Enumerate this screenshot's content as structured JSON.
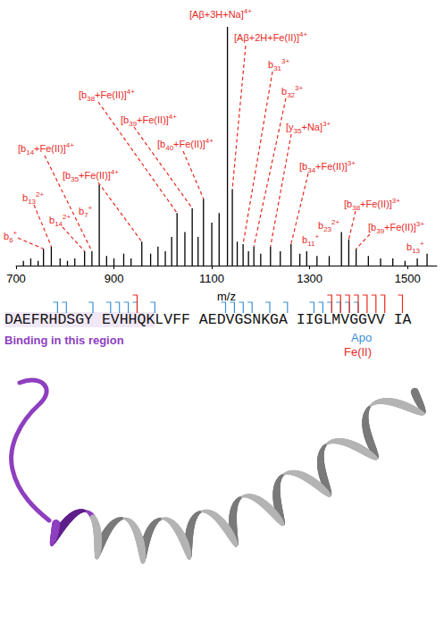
{
  "chart_data": {
    "type": "bar",
    "x_label": "m/z",
    "x": [
      715,
      730,
      745,
      756,
      772,
      790,
      805,
      820,
      840,
      855,
      870,
      885,
      900,
      920,
      935,
      957,
      975,
      990,
      1005,
      1018,
      1029,
      1045,
      1060,
      1072,
      1083,
      1100,
      1115,
      1132,
      1142,
      1152,
      1164,
      1175,
      1186,
      1200,
      1220,
      1240,
      1262,
      1280,
      1294,
      1315,
      1340,
      1365,
      1380,
      1395,
      1420,
      1445,
      1470,
      1495,
      1520,
      1540
    ],
    "values": [
      2,
      3,
      2,
      7,
      8,
      3,
      2,
      3,
      6,
      6,
      34,
      4,
      3,
      5,
      3,
      10,
      5,
      8,
      6,
      12,
      22,
      14,
      24,
      12,
      28,
      18,
      22,
      100,
      32,
      10,
      9,
      6,
      8,
      5,
      8,
      6,
      9,
      5,
      6,
      4,
      4,
      14,
      11,
      7,
      4,
      3,
      3,
      2,
      3,
      5
    ],
    "color": "#000000",
    "xlim": [
      700,
      1560
    ],
    "xticks": [
      700,
      900,
      1100,
      1300,
      1500
    ],
    "ylim": [
      0,
      100
    ],
    "grid": false,
    "tick_labels": "x",
    "annotations": [
      {
        "ion": "[Aβ+3H+Na]",
        "charge": "4+",
        "x": 1132,
        "color": "#e8291f"
      },
      {
        "ion": "[Aβ+2H+Fe(II)]",
        "charge": "4+",
        "x": 1142,
        "color": "#e8291f"
      },
      {
        "ion": "b31",
        "charge": "3+",
        "x": 1164,
        "color": "#e8291f"
      },
      {
        "ion": "b32",
        "charge": "3+",
        "x": 1186,
        "color": "#e8291f"
      },
      {
        "ion": "[y35+Na]",
        "charge": "3+",
        "x": 1220,
        "color": "#e8291f"
      },
      {
        "ion": "[b34+Fe(II)]",
        "charge": "3+",
        "x": 1262,
        "color": "#e8291f"
      },
      {
        "ion": "b11",
        "charge": "+",
        "x": 1294,
        "color": "#e8291f"
      },
      {
        "ion": "b23",
        "charge": "2+",
        "x": 1365,
        "color": "#e8291f"
      },
      {
        "ion": "[b38+Fe(II)]",
        "charge": "3+",
        "x": 1380,
        "color": "#e8291f"
      },
      {
        "ion": "[b39+Fe(II)]",
        "charge": "3+",
        "x": 1395,
        "color": "#e8291f"
      },
      {
        "ion": "b13",
        "charge": "+",
        "x": 1540,
        "color": "#e8291f"
      },
      {
        "ion": "[b38+Fe(II)]",
        "charge": "4+",
        "x": 1029,
        "color": "#e8291f"
      },
      {
        "ion": "[b39+Fe(II)]",
        "charge": "4+",
        "x": 1060,
        "color": "#e8291f"
      },
      {
        "ion": "[b40+Fe(II)]",
        "charge": "4+",
        "x": 1083,
        "color": "#e8291f"
      },
      {
        "ion": "[b14+Fe(II)]",
        "charge": "4+",
        "x": 855,
        "color": "#e8291f"
      },
      {
        "ion": "[b35+Fe(II)]",
        "charge": "4+",
        "x": 957,
        "color": "#e8291f"
      },
      {
        "ion": "b13",
        "charge": "2+",
        "x": 772,
        "color": "#e8291f"
      },
      {
        "ion": "b14",
        "charge": "2+",
        "x": 840,
        "color": "#e8291f"
      },
      {
        "ion": "b6",
        "charge": "+",
        "x": 756,
        "color": "#e8291f"
      },
      {
        "ion": "b7",
        "charge": "+",
        "x": 870,
        "color": "#e8291f"
      }
    ]
  },
  "sequence": {
    "text": "DAEFRHDSGY EVHHQKLVFF AEDVGSNKGA IIGLMVGGVV IA",
    "binding_label": "Binding in this region",
    "binding_color": "#8e3fbf",
    "binding_residues": [
      1,
      16
    ],
    "cleavages": [
      {
        "name": "Apo",
        "color": "#3d8fd8",
        "residues": [
          6,
          7,
          10,
          11,
          12,
          13,
          14,
          16,
          23,
          24,
          25,
          26,
          28,
          30,
          32,
          33,
          34,
          35,
          36,
          37
        ]
      },
      {
        "name": "Fe(II)",
        "color": "#e8291f",
        "residues": [
          14,
          34,
          35,
          36,
          37,
          38,
          39,
          40,
          41
        ]
      }
    ]
  },
  "structure": {
    "n_terminal_color": "#8e3fbf",
    "color": "#b4b4b4"
  }
}
